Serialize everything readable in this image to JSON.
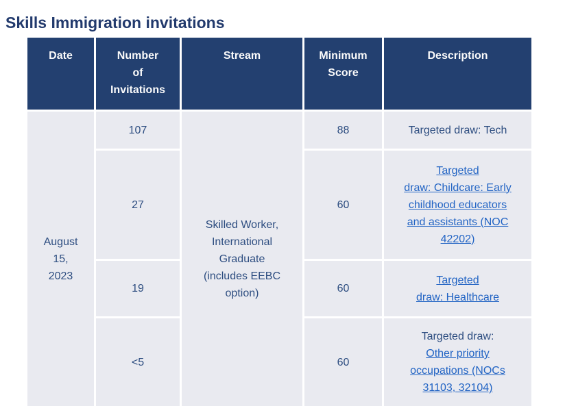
{
  "page": {
    "title": "Skills Immigration invitations"
  },
  "colors": {
    "header_bg": "#234070",
    "header_text": "#fafafa",
    "cell_bg": "#e9eaf0",
    "body_text": "#2d4d80",
    "link": "#2264c4",
    "title_text": "#223a6d"
  },
  "table": {
    "headers": {
      "date": "Date",
      "invitations": "Number\nof\nInvitations",
      "stream": "Stream",
      "min_score": "Minimum\nScore",
      "description": "Description"
    },
    "date": "August\n15,\n2023",
    "stream": "Skilled Worker,\nInternational\nGraduate\n(includes EEBC\noption)",
    "rows": [
      {
        "invitations": "107",
        "min_score": "88",
        "desc_plain": "Targeted draw: Tech",
        "desc_link": ""
      },
      {
        "invitations": "27",
        "min_score": "60",
        "desc_plain": "",
        "desc_link": "Targeted\ndraw: Childcare: Early\nchildhood educators\nand assistants (NOC\n42202)"
      },
      {
        "invitations": "19",
        "min_score": "60",
        "desc_plain": "",
        "desc_link": "Targeted\ndraw: Healthcare"
      },
      {
        "invitations": "<5",
        "min_score": "60",
        "desc_plain": "Targeted draw:",
        "desc_link": "Other priority\noccupations (NOCs\n31103, 32104)"
      }
    ]
  }
}
